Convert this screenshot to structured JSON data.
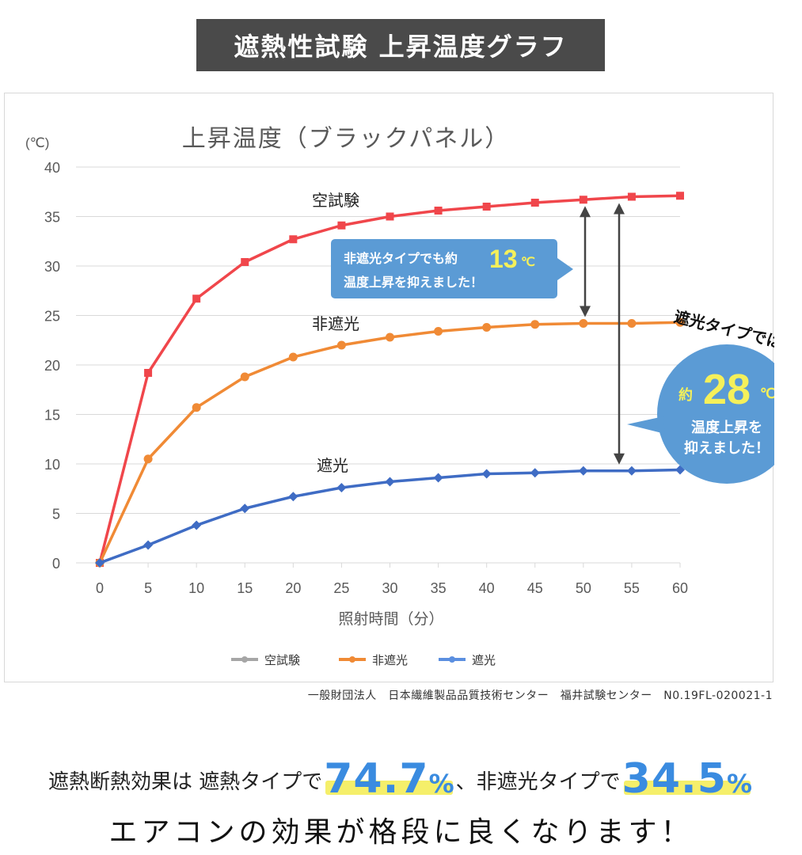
{
  "banner": {
    "title": "遮熱性試験 上昇温度グラフ"
  },
  "chart_data": {
    "type": "line",
    "title": "上昇温度（ブラックパネル）",
    "unit_label": "(℃)",
    "xlabel": "照射時間（分）",
    "ylabel": "",
    "x": [
      0,
      5,
      10,
      15,
      20,
      25,
      30,
      35,
      40,
      45,
      50,
      55,
      60
    ],
    "xlim": [
      0,
      60
    ],
    "ylim": [
      0,
      40
    ],
    "yticks": [
      0,
      5,
      10,
      15,
      20,
      25,
      30,
      35,
      40
    ],
    "grid": true,
    "legend_position": "bottom",
    "series": [
      {
        "name": "空試験",
        "label": "空試験",
        "color": "#f0464b",
        "marker": "square",
        "values": [
          0,
          19.2,
          26.7,
          30.4,
          32.7,
          34.1,
          35.0,
          35.6,
          36.0,
          36.4,
          36.7,
          37.0,
          37.1
        ]
      },
      {
        "name": "非遮光",
        "label": "非遮光",
        "color": "#f08a35",
        "marker": "circle",
        "values": [
          0,
          10.5,
          15.7,
          18.8,
          20.8,
          22.0,
          22.8,
          23.4,
          23.8,
          24.1,
          24.2,
          24.2,
          24.3
        ]
      },
      {
        "name": "遮光",
        "label": "遮光",
        "color": "#3f6cc4",
        "marker": "diamond",
        "values": [
          0,
          1.8,
          3.8,
          5.5,
          6.7,
          7.6,
          8.2,
          8.6,
          9.0,
          9.1,
          9.3,
          9.3,
          9.4
        ]
      }
    ],
    "legend_colors": [
      "#a6a6a6",
      "#f08a35",
      "#5b8fe0"
    ],
    "callout_blue_box": {
      "line1": "非遮光タイプでも約",
      "number": "13",
      "unit": "℃",
      "line2": "温度上昇を抑えました！",
      "color": "#5b9bd5",
      "number_color": "#f5f05a"
    },
    "callout_circle": {
      "arc_text": "遮光タイプでは",
      "prefix": "約",
      "number": "28",
      "unit": "℃",
      "line1": "温度上昇を",
      "line2": "抑えました！",
      "color": "#5b9bd5",
      "number_color": "#f5f05a"
    }
  },
  "source_note": "一般財団法人　日本繊維製品品質技術センター　福井試験センター　N0.19FL-020021-1",
  "claim": {
    "part1": "遮熱断熱効果は 遮熱タイプで",
    "value1": "74.7",
    "unit1": "%",
    "part2": "、非遮光タイプで",
    "value2": "34.5",
    "unit2": "%"
  },
  "final_line": "エアコンの効果が格段に良くなります！"
}
